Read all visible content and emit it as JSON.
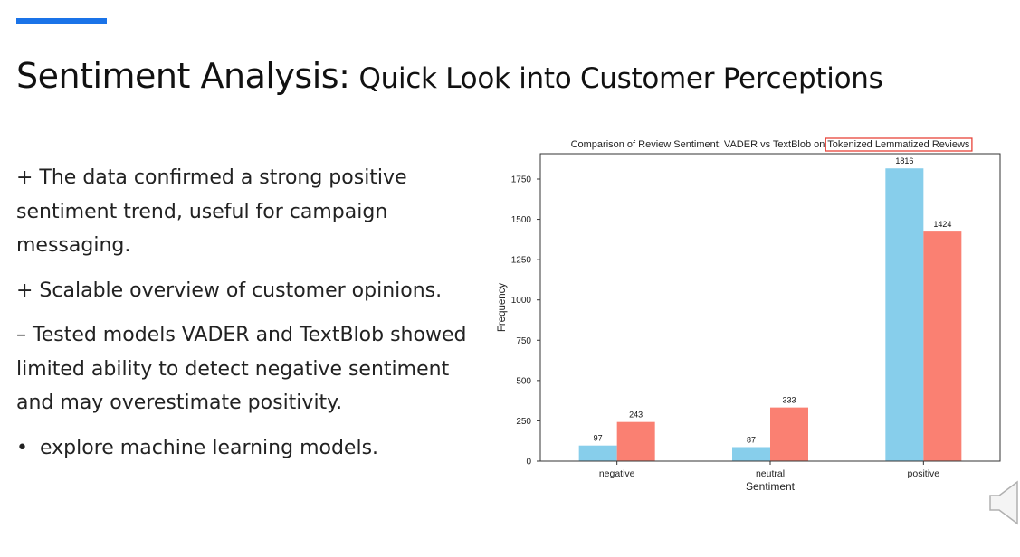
{
  "slide": {
    "title_main": "Sentiment Analysis:",
    "title_sub": "Quick Look into Customer Perceptions",
    "accent_color": "#1a73e8",
    "bullets": [
      "+ The data confirmed a strong positive sentiment trend, useful for campaign messaging.",
      "+ Scalable overview of customer opinions.",
      "– Tested models VADER and TextBlob showed limited ability to detect negative sentiment and may overestimate positivity."
    ],
    "dot_item": {
      "marker": "•",
      "text": "explore machine learning models."
    },
    "speaker_icon": "speaker-icon"
  },
  "chart_data": {
    "type": "bar",
    "title_prefix": "Comparison of Review Sentiment: VADER vs TextBlob on",
    "title_highlight": "Tokenized Lemmatized Reviews",
    "title_highlight_color": "#e8443a",
    "xlabel": "Sentiment",
    "ylabel": "Frequency",
    "categories": [
      "negative",
      "neutral",
      "positive"
    ],
    "yticks": [
      0,
      250,
      500,
      750,
      1000,
      1250,
      1500,
      1750
    ],
    "ylim": [
      0,
      1907
    ],
    "series": [
      {
        "values": [
          97,
          87,
          1816
        ],
        "color": "#87ceeb"
      },
      {
        "values": [
          243,
          333,
          1424
        ],
        "color": "#fa8072"
      }
    ],
    "legend": "none",
    "grid": false
  }
}
